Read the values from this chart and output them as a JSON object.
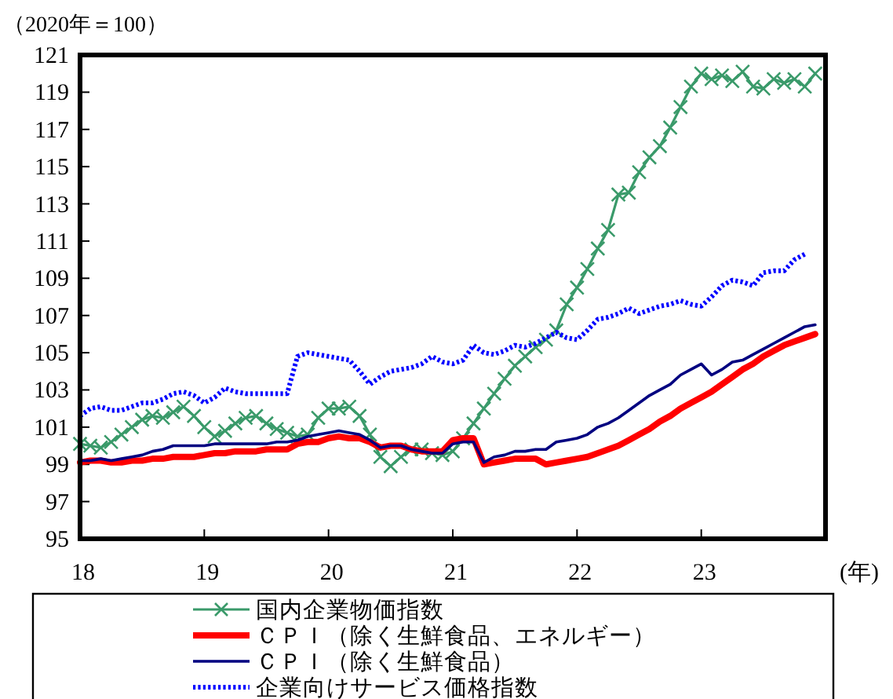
{
  "chart_data": {
    "type": "line",
    "ylabel": "（2020年＝100）",
    "xlabel": "(年)",
    "x": [
      18.0,
      18.083,
      18.167,
      18.25,
      18.333,
      18.417,
      18.5,
      18.583,
      18.667,
      18.75,
      18.833,
      18.917,
      19.0,
      19.083,
      19.167,
      19.25,
      19.333,
      19.417,
      19.5,
      19.583,
      19.667,
      19.75,
      19.833,
      19.917,
      20.0,
      20.083,
      20.167,
      20.25,
      20.333,
      20.417,
      20.5,
      20.583,
      20.667,
      20.75,
      20.833,
      20.917,
      21.0,
      21.083,
      21.167,
      21.25,
      21.333,
      21.417,
      21.5,
      21.583,
      21.667,
      21.75,
      21.833,
      21.917,
      22.0,
      22.083,
      22.167,
      22.25,
      22.333,
      22.417,
      22.5,
      22.583,
      22.667,
      22.75,
      22.833,
      22.917,
      23.0,
      23.083,
      23.167,
      23.25,
      23.333,
      23.417,
      23.5,
      23.583,
      23.667,
      23.75,
      23.833,
      23.917
    ],
    "xlim": [
      18,
      24
    ],
    "xticks": [
      18,
      19,
      20,
      21,
      22,
      23
    ],
    "ylim": [
      95,
      121
    ],
    "yticks": [
      95,
      97,
      99,
      101,
      103,
      105,
      107,
      109,
      111,
      113,
      115,
      117,
      119,
      121
    ],
    "legend": "bottom",
    "series": [
      {
        "name": "国内企業物価指数",
        "color": "#3a9a6a",
        "marker": "cross",
        "values": [
          100.1,
          100.0,
          99.9,
          100.2,
          100.6,
          101.0,
          101.4,
          101.6,
          101.5,
          101.8,
          102.1,
          101.6,
          101.0,
          100.5,
          100.8,
          101.2,
          101.5,
          101.6,
          101.2,
          100.9,
          100.7,
          100.5,
          100.6,
          101.5,
          102.0,
          102.0,
          102.1,
          101.6,
          100.6,
          99.4,
          98.9,
          99.4,
          99.8,
          99.8,
          99.6,
          99.5,
          99.7,
          100.4,
          101.2,
          102.0,
          102.8,
          103.6,
          104.3,
          104.8,
          105.3,
          105.7,
          106.2,
          107.6,
          108.5,
          109.5,
          110.6,
          111.6,
          113.5,
          113.6,
          114.7,
          115.5,
          116.1,
          117.1,
          118.2,
          119.3,
          120.0,
          119.7,
          119.9,
          119.6,
          120.1,
          119.3,
          119.2,
          119.7,
          119.5,
          119.7,
          119.3,
          120.0
        ]
      },
      {
        "name": "ＣＰＩ（除く生鮮食品、エネルギー）",
        "color": "#ff0000",
        "values": [
          99.1,
          99.2,
          99.2,
          99.1,
          99.1,
          99.2,
          99.2,
          99.3,
          99.3,
          99.4,
          99.4,
          99.4,
          99.5,
          99.6,
          99.6,
          99.7,
          99.7,
          99.7,
          99.8,
          99.8,
          99.8,
          100.1,
          100.2,
          100.2,
          100.4,
          100.5,
          100.4,
          100.4,
          100.2,
          99.9,
          100.0,
          100.0,
          99.8,
          99.7,
          99.7,
          99.7,
          100.3,
          100.4,
          100.4,
          99.0,
          99.1,
          99.2,
          99.3,
          99.3,
          99.3,
          99.0,
          99.1,
          99.2,
          99.3,
          99.4,
          99.6,
          99.8,
          100.0,
          100.3,
          100.6,
          100.9,
          101.3,
          101.6,
          102.0,
          102.3,
          102.6,
          102.9,
          103.3,
          103.7,
          104.1,
          104.4,
          104.8,
          105.1,
          105.4,
          105.6,
          105.8,
          106.0
        ]
      },
      {
        "name": "ＣＰＩ（除く生鮮食品）",
        "color": "#000080",
        "values": [
          99.2,
          99.2,
          99.3,
          99.2,
          99.3,
          99.4,
          99.5,
          99.7,
          99.8,
          100.0,
          100.0,
          100.0,
          100.0,
          100.1,
          100.1,
          100.1,
          100.1,
          100.1,
          100.1,
          100.2,
          100.2,
          100.3,
          100.5,
          100.6,
          100.7,
          100.8,
          100.7,
          100.6,
          100.3,
          99.9,
          100.0,
          100.0,
          99.8,
          99.7,
          99.6,
          99.6,
          100.1,
          100.2,
          100.2,
          99.1,
          99.4,
          99.5,
          99.7,
          99.7,
          99.8,
          99.8,
          100.2,
          100.3,
          100.4,
          100.6,
          101.0,
          101.2,
          101.5,
          101.9,
          102.3,
          102.7,
          103.0,
          103.3,
          103.8,
          104.1,
          104.4,
          103.8,
          104.1,
          104.5,
          104.6,
          104.9,
          105.2,
          105.5,
          105.8,
          106.1,
          106.4,
          106.5
        ]
      },
      {
        "name": "企業向けサービス価格指数",
        "color": "#0000ff",
        "line_style": "dotted",
        "values": [
          101.6,
          102.0,
          102.1,
          101.9,
          101.9,
          102.1,
          102.3,
          102.3,
          102.5,
          102.8,
          102.9,
          102.7,
          102.3,
          102.6,
          103.1,
          102.9,
          102.8,
          102.8,
          102.8,
          102.8,
          102.8,
          104.8,
          105.0,
          104.9,
          104.8,
          104.7,
          104.6,
          104.0,
          103.3,
          103.7,
          104.0,
          104.1,
          104.2,
          104.4,
          104.8,
          104.5,
          104.4,
          104.6,
          105.4,
          105.0,
          104.9,
          105.1,
          105.4,
          105.3,
          105.5,
          105.8,
          106.1,
          105.8,
          105.7,
          106.2,
          106.8,
          106.9,
          107.1,
          107.4,
          107.1,
          107.3,
          107.5,
          107.6,
          107.8,
          107.6,
          107.5,
          108.0,
          108.6,
          108.9,
          108.8,
          108.6,
          109.3,
          109.4,
          109.4,
          110.0,
          110.3,
          null
        ]
      }
    ]
  }
}
